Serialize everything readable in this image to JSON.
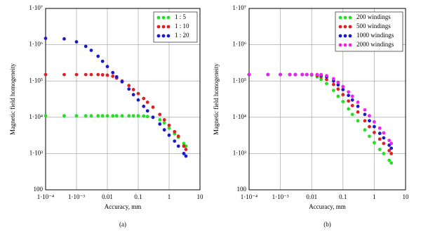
{
  "chart_data": [
    {
      "type": "scatter",
      "xlabel": "Accuracy, mm",
      "ylabel": "Magnetic field homogeneity",
      "caption": "(a)",
      "xscale": "log",
      "yscale": "log",
      "grid": true,
      "legend": "upper right",
      "xlim": [
        0.0001,
        10
      ],
      "ylim": [
        100,
        10000000
      ],
      "xticks": [
        {
          "value": 0.0001,
          "label": "1·10⁻⁴"
        },
        {
          "value": 0.001,
          "label": "1·10⁻³"
        },
        0.01,
        0.1,
        1,
        10
      ],
      "yticks": [
        100,
        {
          "value": 1000,
          "label": "1·10³"
        },
        {
          "value": 10000,
          "label": "1·10⁴"
        },
        {
          "value": 100000,
          "label": "1·10⁵"
        },
        {
          "value": 1000000,
          "label": "1·10⁶"
        },
        {
          "value": 10000000,
          "label": "1·10⁷"
        }
      ],
      "x": [
        0.0001,
        0.0004,
        0.001,
        0.002,
        0.003,
        0.005,
        0.007,
        0.01,
        0.015,
        0.02,
        0.03,
        0.05,
        0.07,
        0.1,
        0.15,
        0.2,
        0.3,
        0.5,
        0.7,
        1,
        1.5,
        2,
        3,
        3.5
      ],
      "series": [
        {
          "name": "1 : 5",
          "color": "#22e022",
          "values": [
            11000,
            11000,
            11000,
            11000,
            11000,
            11000,
            11000,
            11000,
            11000,
            11000,
            11000,
            11000,
            11000,
            11000,
            10800,
            10500,
            10000,
            8500,
            7000,
            5000,
            3500,
            2800,
            1900,
            1600
          ]
        },
        {
          "name": "1 : 10",
          "color": "#e02020",
          "values": [
            150000,
            150000,
            150000,
            150000,
            150000,
            150000,
            148000,
            145000,
            135000,
            120000,
            100000,
            75000,
            58000,
            45000,
            33000,
            26000,
            19000,
            12000,
            8500,
            6000,
            4000,
            3000,
            1600,
            1300
          ]
        },
        {
          "name": "1 : 20",
          "color": "#1a1acc",
          "values": [
            1500000,
            1450000,
            1200000,
            900000,
            700000,
            480000,
            350000,
            250000,
            170000,
            130000,
            95000,
            60000,
            42000,
            30000,
            20000,
            15000,
            10000,
            6500,
            4500,
            3200,
            2200,
            1600,
            1000,
            850
          ]
        }
      ]
    },
    {
      "type": "scatter",
      "xlabel": "Accuracy, mm",
      "ylabel": "Magnetic field homogeneity",
      "caption": "(b)",
      "xscale": "log",
      "yscale": "log",
      "grid": true,
      "legend": "upper right",
      "xlim": [
        0.0001,
        10
      ],
      "ylim": [
        100,
        10000000
      ],
      "xticks": [
        {
          "value": 0.0001,
          "label": "1·10⁻⁴"
        },
        {
          "value": 0.001,
          "label": "1·10⁻³"
        },
        0.01,
        0.1,
        1,
        10
      ],
      "yticks": [
        100,
        {
          "value": 1000,
          "label": "1·10³"
        },
        {
          "value": 10000,
          "label": "1·10⁴"
        },
        {
          "value": 100000,
          "label": "1·10⁵"
        },
        {
          "value": 1000000,
          "label": "1·10⁶"
        },
        {
          "value": 10000000,
          "label": "1·10⁷"
        }
      ],
      "x": [
        0.0001,
        0.0004,
        0.001,
        0.002,
        0.003,
        0.005,
        0.007,
        0.01,
        0.015,
        0.02,
        0.03,
        0.05,
        0.07,
        0.1,
        0.15,
        0.2,
        0.3,
        0.5,
        0.7,
        1,
        1.5,
        2,
        3,
        3.5
      ],
      "series": [
        {
          "name": "200 windings",
          "color": "#22e022",
          "values": [
            150000,
            150000,
            150000,
            150000,
            150000,
            150000,
            150000,
            145000,
            130000,
            110000,
            85000,
            55000,
            38000,
            27000,
            17000,
            12000,
            8000,
            4500,
            3000,
            2000,
            1300,
            1000,
            650,
            550
          ]
        },
        {
          "name": "500 windings",
          "color": "#e02020",
          "values": [
            150000,
            150000,
            150000,
            150000,
            150000,
            150000,
            150000,
            150000,
            140000,
            130000,
            110000,
            80000,
            60000,
            42000,
            28000,
            21000,
            14000,
            8000,
            5500,
            3800,
            2500,
            1900,
            1200,
            1000
          ]
        },
        {
          "name": "1000 windings",
          "color": "#1a1acc",
          "values": [
            150000,
            150000,
            150000,
            150000,
            150000,
            150000,
            150000,
            150000,
            150000,
            145000,
            130000,
            100000,
            78000,
            58000,
            40000,
            30000,
            20000,
            12000,
            8000,
            5500,
            3600,
            2700,
            1700,
            1400
          ]
        },
        {
          "name": "2000 windings",
          "color": "#ee22ee",
          "values": [
            150000,
            150000,
            150000,
            150000,
            150000,
            150000,
            150000,
            150000,
            150000,
            150000,
            140000,
            115000,
            92000,
            70000,
            50000,
            38000,
            26000,
            16000,
            11000,
            7500,
            5000,
            3700,
            2300,
            1900
          ]
        }
      ]
    }
  ]
}
